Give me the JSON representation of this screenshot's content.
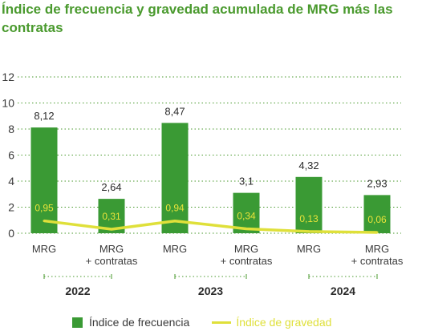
{
  "title": "Índice de frecuencia y gravedad acumulada de MRG más las contratas",
  "colors": {
    "frecuencia": "#3a9a34",
    "gravedad": "#dfe03a",
    "grid": "#4a9a2e"
  },
  "chart_data": {
    "type": "bar",
    "categories": [
      "MRG",
      "MRG\n+ contratas",
      "MRG",
      "MRG\n+ contratas",
      "MRG",
      "MRG\n+ contratas"
    ],
    "category_lines": [
      [
        "MRG"
      ],
      [
        "MRG",
        "+ contratas"
      ],
      [
        "MRG"
      ],
      [
        "MRG",
        "+ contratas"
      ],
      [
        "MRG"
      ],
      [
        "MRG",
        "+ contratas"
      ]
    ],
    "groups": [
      "2022",
      "2023",
      "2024"
    ],
    "series": [
      {
        "name": "Índice de frecuencia",
        "type": "bar",
        "values": [
          8.12,
          2.64,
          8.47,
          3.1,
          4.32,
          2.93
        ],
        "labels": [
          "8,12",
          "2,64",
          "8,47",
          "3,1",
          "4,32",
          "2,93"
        ]
      },
      {
        "name": "Índice de gravedad",
        "type": "line",
        "values": [
          0.95,
          0.31,
          0.94,
          0.34,
          0.13,
          0.06
        ],
        "labels": [
          "0,95",
          "0,31",
          "0,94",
          "0,34",
          "0,13",
          "0,06"
        ]
      }
    ],
    "ylim": [
      0,
      12
    ],
    "yticks": [
      0,
      2,
      4,
      6,
      8,
      10,
      12
    ],
    "grid": true,
    "legend_position": "bottom"
  }
}
